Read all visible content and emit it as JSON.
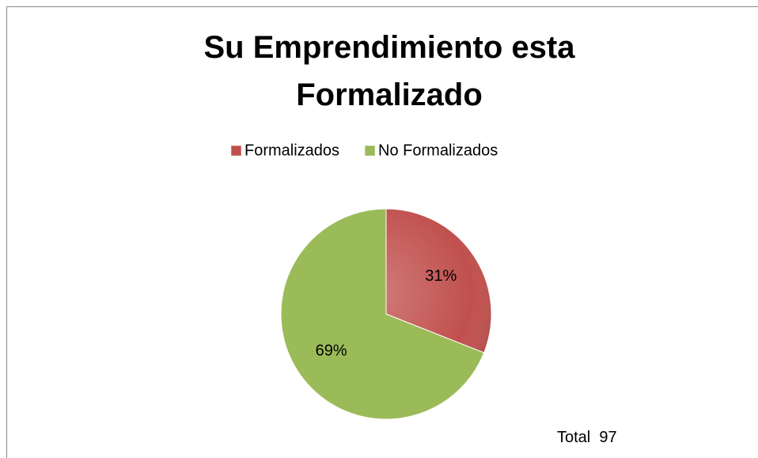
{
  "chart_data": {
    "type": "pie",
    "title": "Su Emprendimiento esta Formalizado",
    "categories": [
      "Formalizados",
      "No Formalizados"
    ],
    "values": [
      31,
      69
    ],
    "value_labels": [
      "31%",
      "69%"
    ],
    "colors": [
      "#c0504d",
      "#9bbb59"
    ],
    "legend": "top",
    "annotation": "Total  97"
  }
}
